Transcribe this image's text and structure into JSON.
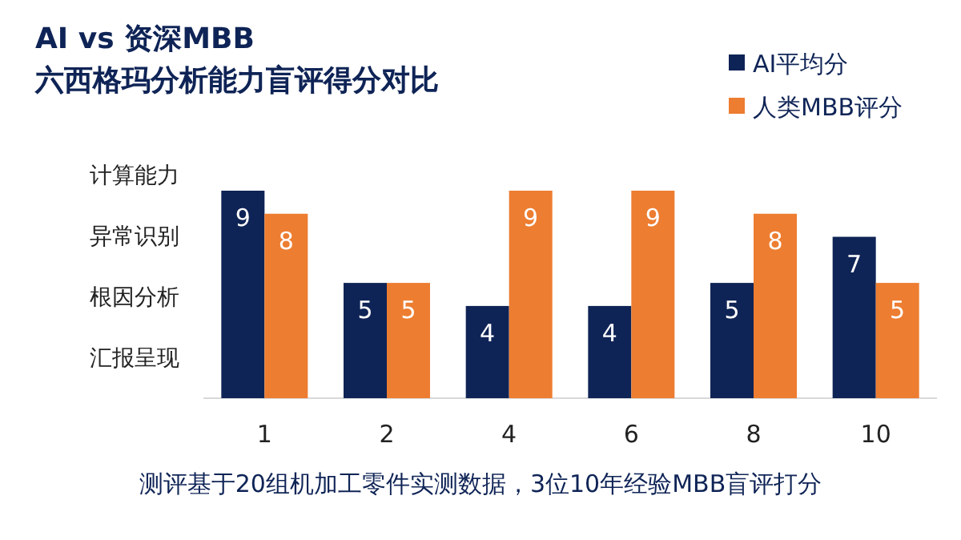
{
  "chart_data": {
    "type": "bar",
    "title": "AI vs 资深MBB",
    "subtitle": "六西格玛分析能力盲评得分对比",
    "categories": [
      "1",
      "2",
      "4",
      "6",
      "8",
      "10"
    ],
    "series": [
      {
        "name": "AI平均分",
        "color": "#0f2456",
        "values": [
          9,
          5,
          4,
          4,
          5,
          7
        ]
      },
      {
        "name": "人类MBB评分",
        "color": "#ed7d31",
        "values": [
          8,
          5,
          9,
          9,
          8,
          5
        ]
      }
    ],
    "legend": "top right",
    "data_labels": true,
    "annotations": [
      "计算能力",
      "异常识别",
      "根因分析",
      "汇报呈现",
      "测评基于20组机加工零件实测数据，3位10年经验MBB盲评打分"
    ]
  }
}
